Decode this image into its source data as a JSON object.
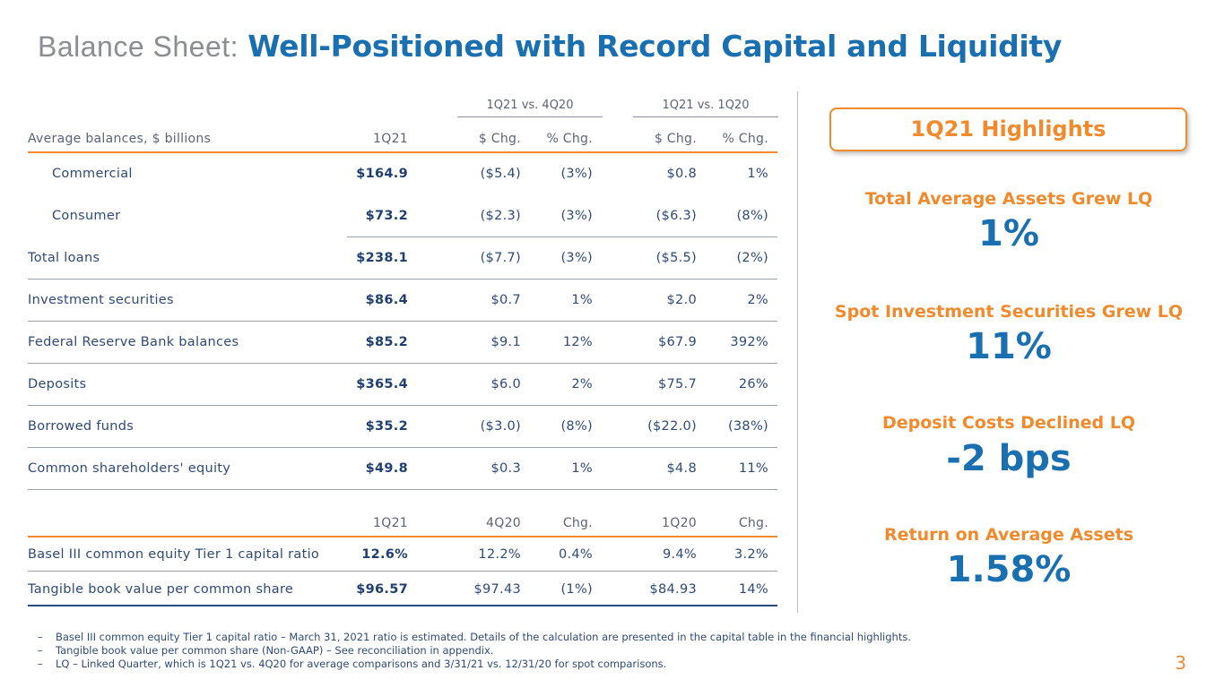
{
  "title": {
    "prefix": "Balance Sheet:",
    "main": "Well-Positioned with Record Capital and Liquidity"
  },
  "table1": {
    "group_headers": [
      "1Q21 vs. 4Q20",
      "1Q21 vs. 1Q20"
    ],
    "columns": [
      "Average balances, $ billions",
      "1Q21",
      "$ Chg.",
      "% Chg.",
      "$ Chg.",
      "% Chg."
    ],
    "rows": [
      [
        "Commercial",
        "$164.9",
        "($5.4)",
        "(3%)",
        "$0.8",
        "1%"
      ],
      [
        "Consumer",
        "$73.2",
        "($2.3)",
        "(3%)",
        "($6.3)",
        "(8%)"
      ],
      [
        "Total loans",
        "$238.1",
        "($7.7)",
        "(3%)",
        "($5.5)",
        "(2%)"
      ],
      [
        "Investment securities",
        "$86.4",
        "$0.7",
        "1%",
        "$2.0",
        "2%"
      ],
      [
        "Federal Reserve Bank balances",
        "$85.2",
        "$9.1",
        "12%",
        "$67.9",
        "392%"
      ],
      [
        "Deposits",
        "$365.4",
        "$6.0",
        "2%",
        "$75.7",
        "26%"
      ],
      [
        "Borrowed funds",
        "$35.2",
        "($3.0)",
        "(8%)",
        "($22.0)",
        "(38%)"
      ],
      [
        "Common shareholders' equity",
        "$49.8",
        "$0.3",
        "1%",
        "$4.8",
        "11%"
      ]
    ]
  },
  "table2": {
    "columns": [
      "",
      "1Q21",
      "4Q20",
      "Chg.",
      "1Q20",
      "Chg."
    ],
    "rows": [
      [
        "Basel III common equity Tier 1 capital ratio",
        "12.6%",
        "12.2%",
        "0.4%",
        "9.4%",
        "3.2%"
      ],
      [
        "Tangible book value per common share",
        "$96.57",
        "$97.43",
        "(1%)",
        "$84.93",
        "14%"
      ]
    ]
  },
  "highlights": {
    "header": "1Q21 Highlights",
    "items": [
      {
        "label": "Total Average Assets Grew LQ",
        "value": "1%"
      },
      {
        "label": "Spot Investment Securities Grew LQ",
        "value": "11%"
      },
      {
        "label": "Deposit Costs Declined LQ",
        "value": "-2 bps"
      },
      {
        "label": "Return on Average Assets",
        "value": "1.58%"
      }
    ]
  },
  "footnotes": [
    "Basel III common equity Tier 1 capital ratio – March 31, 2021 ratio is estimated. Details of the calculation are presented in the capital table in the financial highlights.",
    "Tangible book value per common share (Non-GAAP) – See reconciliation in appendix.",
    "LQ – Linked Quarter, which is 1Q21 vs. 4Q20 for average comparisons and 3/31/21 vs. 12/31/20 for spot comparisons."
  ],
  "footnote_marker": "–",
  "page_number": "3",
  "colors": {
    "brand_blue": "#1a6fb0",
    "accent_orange": "#f08a2c",
    "navy": "#2e4a7a"
  }
}
